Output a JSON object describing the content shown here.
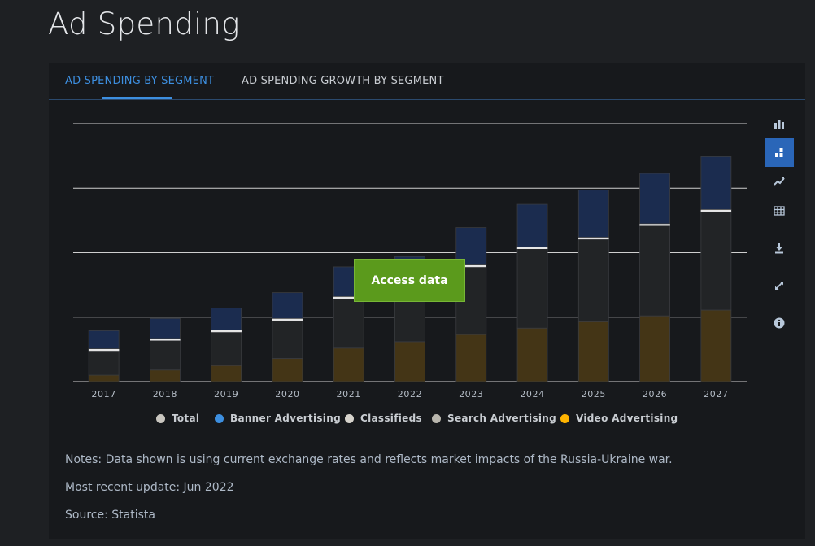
{
  "page": {
    "title": "Ad Spending"
  },
  "tabs": [
    {
      "label": "AD SPENDING BY SEGMENT",
      "active": true
    },
    {
      "label": "AD SPENDING GROWTH BY SEGMENT",
      "active": false
    }
  ],
  "toolbar": {
    "tools": [
      {
        "icon": "bar-chart-icon",
        "active": false
      },
      {
        "icon": "stacked-bar-icon",
        "active": true
      },
      {
        "icon": "trend-line-icon",
        "active": false
      },
      {
        "icon": "table-grid-icon",
        "active": false
      },
      {
        "icon": "download-icon",
        "active": false
      },
      {
        "icon": "expand-icon",
        "active": false
      },
      {
        "icon": "info-icon",
        "active": false
      }
    ]
  },
  "overlay": {
    "access_label": "Access data"
  },
  "colors": {
    "accent": "#3d8fe0",
    "access_button": "#5b9a1c",
    "banner": "#1b2c4f",
    "classifieds": "#e6e6e6",
    "search": "#222426",
    "video": "#443516"
  },
  "chart_data": {
    "type": "bar",
    "stacked": true,
    "categories": [
      "2017",
      "2018",
      "2019",
      "2020",
      "2021",
      "2022",
      "2023",
      "2024",
      "2025",
      "2026",
      "2027"
    ],
    "y_gridlines": 5,
    "y_tick_labels_visible": false,
    "series": [
      {
        "name": "Video Advertising",
        "color": "#ffb400",
        "values": [
          1.0,
          1.8,
          2.5,
          3.6,
          5.2,
          6.2,
          7.3,
          8.3,
          9.3,
          10.2,
          11.1
        ]
      },
      {
        "name": "Search Advertising",
        "color": "#b9b6ad",
        "values": [
          3.8,
          4.6,
          5.2,
          5.9,
          7.7,
          7.9,
          10.5,
          12.3,
          12.8,
          14.0,
          15.3
        ]
      },
      {
        "name": "Classifieds",
        "color": "#d6d3cc",
        "values": [
          0.3,
          0.3,
          0.3,
          0.3,
          0.3,
          0.3,
          0.3,
          0.3,
          0.3,
          0.3,
          0.3
        ]
      },
      {
        "name": "Banner Advertising",
        "color": "#3d8fe0",
        "values": [
          2.8,
          3.1,
          3.4,
          4.0,
          4.6,
          5.0,
          5.8,
          6.6,
          7.3,
          7.8,
          8.2
        ]
      }
    ],
    "legend": [
      {
        "name": "Total",
        "color": "#c9c6bf"
      },
      {
        "name": "Banner Advertising",
        "color": "#3d8fe0"
      },
      {
        "name": "Classifieds",
        "color": "#d6d3cc"
      },
      {
        "name": "Search Advertising",
        "color": "#b9b6ad"
      },
      {
        "name": "Video Advertising",
        "color": "#ffb400"
      }
    ],
    "legend_position": "bottom-center",
    "grid": true,
    "ylim": [
      0,
      40
    ]
  },
  "notes": {
    "text": "Notes: Data shown is using current exchange rates and reflects market impacts of the Russia-Ukraine war.",
    "update": "Most recent update: Jun 2022",
    "source": "Source: Statista"
  }
}
